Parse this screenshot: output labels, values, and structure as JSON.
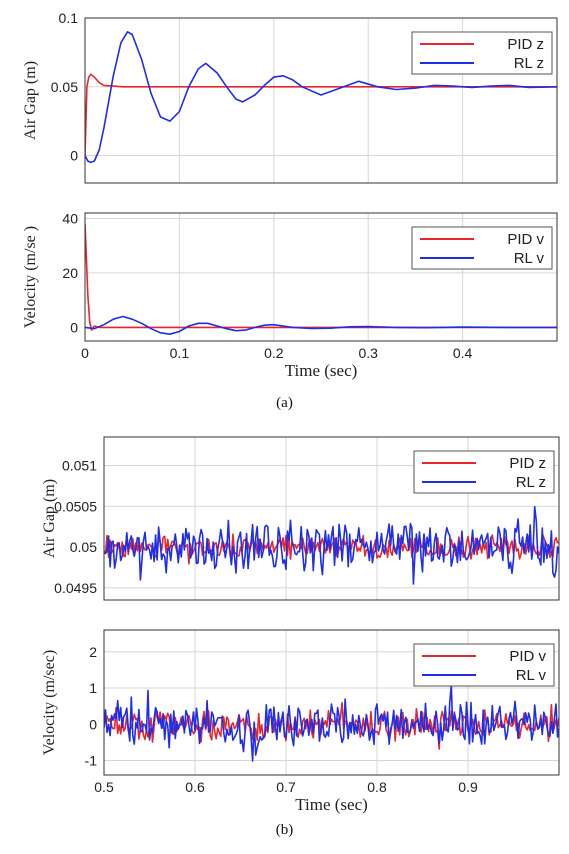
{
  "captions": {
    "a": "(a)",
    "b": "(b)"
  },
  "colors": {
    "pid": "#e8262b",
    "rl": "#1f2ee8",
    "grid": "#d7d7d7",
    "axis": "#333333"
  },
  "chart_data": [
    {
      "id": "a-airgap",
      "type": "line",
      "ylabel": "Air Gap (m)",
      "xlabel": "",
      "xlim": [
        0,
        0.5
      ],
      "ylim": [
        -0.02,
        0.1
      ],
      "xticks": [
        0,
        0.1,
        0.2,
        0.3,
        0.4
      ],
      "yticks": [
        0,
        0.05,
        0.1
      ],
      "ytick_labels": [
        "0",
        "0.05",
        "0.1"
      ],
      "show_xtick_labels": false,
      "grid": true,
      "legend": "top-right",
      "series": [
        {
          "name": "PID z",
          "color": "pid",
          "x": [
            0,
            0.002,
            0.004,
            0.006,
            0.01,
            0.015,
            0.02,
            0.03,
            0.04,
            0.06,
            0.1,
            0.5
          ],
          "y": [
            0,
            0.05,
            0.057,
            0.059,
            0.057,
            0.053,
            0.051,
            0.0505,
            0.05,
            0.05,
            0.05,
            0.05
          ]
        },
        {
          "name": "RL z",
          "color": "rl",
          "x": [
            0,
            0.003,
            0.006,
            0.01,
            0.015,
            0.02,
            0.03,
            0.038,
            0.045,
            0.05,
            0.06,
            0.07,
            0.08,
            0.09,
            0.1,
            0.11,
            0.12,
            0.128,
            0.14,
            0.15,
            0.16,
            0.167,
            0.18,
            0.19,
            0.2,
            0.21,
            0.22,
            0.23,
            0.25,
            0.27,
            0.29,
            0.31,
            0.33,
            0.35,
            0.37,
            0.39,
            0.41,
            0.43,
            0.45,
            0.47,
            0.5
          ],
          "y": [
            0,
            -0.004,
            -0.005,
            -0.004,
            0.004,
            0.02,
            0.058,
            0.082,
            0.09,
            0.088,
            0.07,
            0.045,
            0.028,
            0.025,
            0.032,
            0.05,
            0.063,
            0.067,
            0.06,
            0.05,
            0.041,
            0.039,
            0.044,
            0.051,
            0.057,
            0.058,
            0.055,
            0.05,
            0.044,
            0.049,
            0.054,
            0.05,
            0.048,
            0.049,
            0.051,
            0.0505,
            0.0495,
            0.0505,
            0.051,
            0.0495,
            0.05
          ]
        }
      ]
    },
    {
      "id": "a-velocity",
      "type": "line",
      "ylabel": "Velocity (m/se )",
      "xlabel": "Time (sec)",
      "xlim": [
        0,
        0.5
      ],
      "ylim": [
        -5,
        42
      ],
      "xticks": [
        0,
        0.1,
        0.2,
        0.3,
        0.4
      ],
      "xtick_labels": [
        "0",
        "0.1",
        "0.2",
        "0.3",
        "0.4"
      ],
      "yticks": [
        0,
        20,
        40
      ],
      "ytick_labels": [
        "0",
        "20",
        "40"
      ],
      "grid": true,
      "legend": "top-right",
      "series": [
        {
          "name": "PID v",
          "color": "pid",
          "x": [
            0,
            0.001,
            0.003,
            0.005,
            0.007,
            0.01,
            0.015,
            0.02,
            0.5
          ],
          "y": [
            38,
            30,
            12,
            2,
            -1,
            0.5,
            0,
            0,
            0
          ]
        },
        {
          "name": "RL v",
          "color": "rl",
          "x": [
            0,
            0.01,
            0.02,
            0.03,
            0.04,
            0.05,
            0.06,
            0.07,
            0.08,
            0.09,
            0.1,
            0.11,
            0.12,
            0.13,
            0.14,
            0.15,
            0.16,
            0.17,
            0.18,
            0.19,
            0.2,
            0.21,
            0.22,
            0.24,
            0.26,
            0.28,
            0.3,
            0.33,
            0.36,
            0.4,
            0.45,
            0.5
          ],
          "y": [
            0,
            -0.5,
            1,
            3,
            4,
            3,
            1.5,
            -0.5,
            -2,
            -2.5,
            -1.5,
            0.5,
            1.5,
            1.5,
            0.5,
            -0.5,
            -1.2,
            -1,
            0,
            0.8,
            1,
            0.5,
            0,
            -0.4,
            -0.3,
            0.2,
            0.3,
            0,
            -0.1,
            0.1,
            0,
            0
          ]
        }
      ]
    },
    {
      "id": "b-airgap",
      "type": "line",
      "ylabel": "Air Gap (m)",
      "xlabel": "",
      "xlim": [
        0.5,
        1.0
      ],
      "ylim": [
        0.04935,
        0.05135
      ],
      "xticks": [
        0.5,
        0.6,
        0.7,
        0.8,
        0.9
      ],
      "show_xtick_labels": false,
      "yticks": [
        0.0495,
        0.05,
        0.0505,
        0.051
      ],
      "ytick_labels": [
        "0.0495",
        "0.05",
        "0.0505",
        "0.051"
      ],
      "grid": true,
      "legend": "top-right",
      "noise": {
        "pid_amp": 0.00014,
        "rl_amp": 0.0003,
        "center": 0.05
      },
      "series": [
        {
          "name": "PID z",
          "color": "pid"
        },
        {
          "name": "RL z",
          "color": "rl"
        }
      ]
    },
    {
      "id": "b-velocity",
      "type": "line",
      "ylabel": "Velocity (m/sec)",
      "xlabel": "Time (sec)",
      "xlim": [
        0.5,
        1.0
      ],
      "ylim": [
        -1.4,
        2.6
      ],
      "xticks": [
        0.5,
        0.6,
        0.7,
        0.8,
        0.9
      ],
      "xtick_labels": [
        "0.5",
        "0.6",
        "0.7",
        "0.8",
        "0.9"
      ],
      "yticks": [
        -1,
        0,
        1,
        2
      ],
      "ytick_labels": [
        "-1",
        "0",
        "1",
        "2"
      ],
      "grid": true,
      "legend": "top-right",
      "noise": {
        "pid_amp": 0.4,
        "rl_amp": 0.6,
        "center": 0
      },
      "series": [
        {
          "name": "PID v",
          "color": "pid"
        },
        {
          "name": "RL v",
          "color": "rl"
        }
      ]
    }
  ]
}
